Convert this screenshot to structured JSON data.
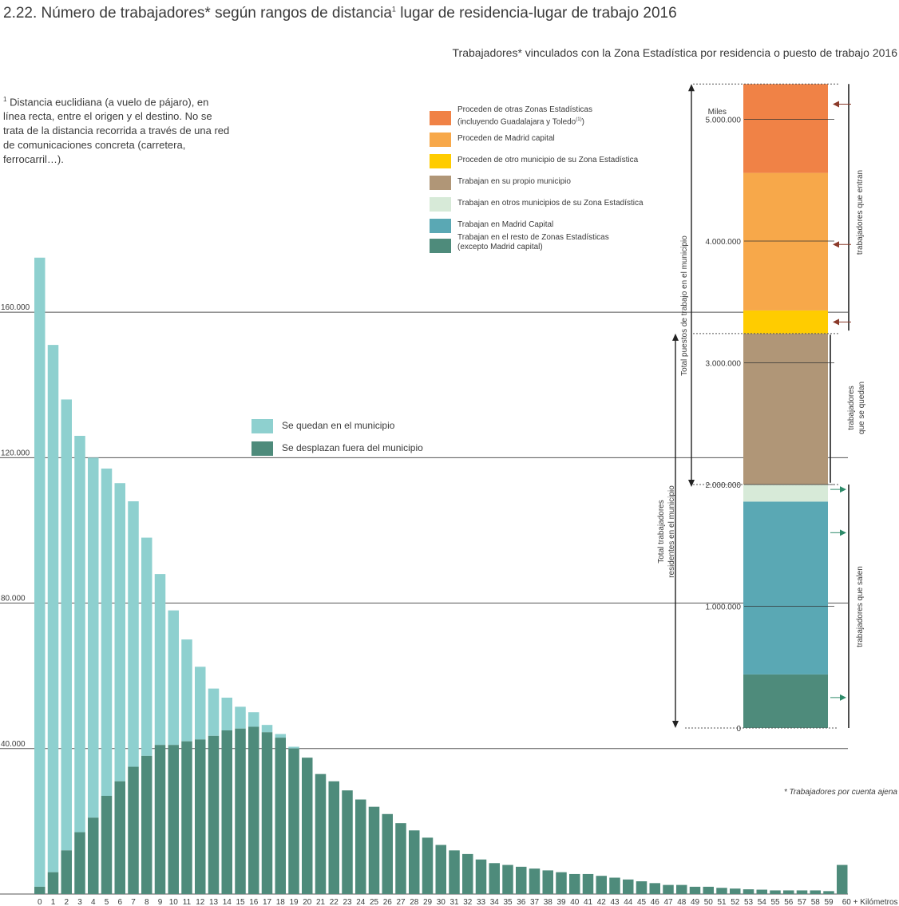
{
  "title": {
    "text": "2.22. Número de trabajadores* según rangos de distancia",
    "sup": "1",
    "text_end": " lugar de residencia-lugar de trabajo 2016"
  },
  "subtitle": "Trabajadores* vinculados con la Zona Estadística por residencia o puesto de trabajo 2016",
  "footnote": {
    "sup": "1",
    "text": "Distancia euclidiana (a vuelo de pájaro), en línea recta, entre el origen y el destino. No se trata de la distancia recorrida a través de una red de comunicaciones concreta (carretera, ferrocarril…)."
  },
  "note": "* Trabajadores por cuenta ajena",
  "colors": {
    "stay": "#8ed0cf",
    "leave": "#4e8b7b",
    "grid": "#555555",
    "arrow_in": "#8b3a2a",
    "arrow_out": "#2e8b6a"
  },
  "chart_data": [
    {
      "type": "bar",
      "stacked": true,
      "xlabel": "Kilómetros",
      "ylim": [
        0,
        180000
      ],
      "y_ticks": [
        "40.000",
        "80.000",
        "120.000",
        "160.000"
      ],
      "y_tick_values": [
        40000,
        80000,
        120000,
        160000
      ],
      "categories": [
        "0",
        "1",
        "2",
        "3",
        "4",
        "5",
        "6",
        "7",
        "8",
        "9",
        "10",
        "11",
        "12",
        "13",
        "14",
        "15",
        "16",
        "17",
        "18",
        "19",
        "20",
        "21",
        "22",
        "23",
        "24",
        "25",
        "26",
        "27",
        "28",
        "29",
        "30",
        "31",
        "32",
        "33",
        "34",
        "35",
        "36",
        "37",
        "38",
        "39",
        "40",
        "41",
        "42",
        "43",
        "44",
        "45",
        "46",
        "47",
        "48",
        "49",
        "50",
        "51",
        "52",
        "53",
        "54",
        "55",
        "56",
        "57",
        "58",
        "59",
        "60 + Kilómetros"
      ],
      "series": [
        {
          "name": "Se quedan en el municipio",
          "values": [
            173000,
            145000,
            124000,
            109000,
            99000,
            90000,
            82000,
            73000,
            60000,
            47000,
            37000,
            28000,
            20000,
            13000,
            9000,
            6000,
            4000,
            2000,
            1000,
            500,
            0,
            0,
            0,
            0,
            0,
            0,
            0,
            0,
            0,
            0,
            0,
            0,
            0,
            0,
            0,
            0,
            0,
            0,
            0,
            0,
            0,
            0,
            0,
            0,
            0,
            0,
            0,
            0,
            0,
            0,
            0,
            0,
            0,
            0,
            0,
            0,
            0,
            0,
            0,
            0,
            0
          ]
        },
        {
          "name": "Se desplazan fuera del municipio",
          "values": [
            2000,
            6000,
            12000,
            17000,
            21000,
            27000,
            31000,
            35000,
            38000,
            41000,
            41000,
            42000,
            42500,
            43500,
            45000,
            45500,
            46000,
            44500,
            43000,
            40000,
            37500,
            33000,
            31000,
            28500,
            26000,
            24000,
            22000,
            19500,
            17500,
            15500,
            13500,
            12000,
            11000,
            9500,
            8500,
            8000,
            7500,
            7000,
            6500,
            6000,
            5500,
            5500,
            5000,
            4500,
            4000,
            3500,
            3000,
            2500,
            2500,
            2000,
            2000,
            1700,
            1500,
            1300,
            1200,
            1000,
            1000,
            1000,
            1000,
            800,
            8000
          ]
        }
      ],
      "legend": [
        {
          "label": "Se quedan en el municipio",
          "color": "#8ed0cf"
        },
        {
          "label": "Se desplazan fuera del municipio",
          "color": "#4e8b7b"
        }
      ]
    },
    {
      "type": "bar",
      "stacked": true,
      "unit_label": "Miles",
      "ylim": [
        0,
        5300000
      ],
      "y_ticks": [
        "0",
        "1.000.000",
        "2.000.000",
        "3.000.000",
        "4.000.000",
        "5.000.000"
      ],
      "y_tick_values": [
        0,
        1000000,
        2000000,
        3000000,
        4000000,
        5000000
      ],
      "segments": [
        {
          "label": "Trabajan en el resto de Zonas Estadísticas (excepto Madrid capital)",
          "color": "#4e8b7b",
          "value": 440000
        },
        {
          "label": "Trabajan en Madrid Capital",
          "color": "#5aa8b4",
          "value": 1420000
        },
        {
          "label": "Trabajan en otros municipios de su Zona Estadística",
          "color": "#d7ead8",
          "value": 140000
        },
        {
          "label": "Trabajan en su propio municipio",
          "color": "#b09677",
          "value": 1240000
        },
        {
          "label": "Proceden de otro municipio de su Zona Estadística",
          "color": "#ffcc00",
          "value": 190000
        },
        {
          "label": "Proceden de Madrid capital",
          "color": "#f7a84a",
          "value": 1130000
        },
        {
          "label": "Proceden de otras Zonas Estadísticas (incluyendo Guadalajara y Toledo)",
          "color": "#f08246",
          "value": 730000
        }
      ],
      "brackets": {
        "total_puestos": "Total puestos de trabajo en el municipio",
        "total_residentes_1": "Total trabajadores",
        "total_residentes_2": "residentes en el municipio",
        "entran": "trabajadores que entran",
        "quedan_1": "trabajadores",
        "quedan_2": "que se quedan",
        "salen": "trabajadores que salen"
      }
    }
  ],
  "legend2": [
    {
      "line1": "Proceden de otras Zonas Estadísticas",
      "line2": "(incluyendo Guadalajara y Toledo",
      "sup": "(1)",
      "line2_end": ")",
      "color": "#f08246"
    },
    {
      "line1": "Proceden de Madrid capital",
      "line2": "",
      "sup": "",
      "line2_end": "",
      "color": "#f7a84a"
    },
    {
      "line1": "Proceden de otro municipio de su Zona Estadística",
      "line2": "",
      "sup": "",
      "line2_end": "",
      "color": "#ffcc00"
    },
    {
      "line1": "Trabajan en su propio municipio",
      "line2": "",
      "sup": "",
      "line2_end": "",
      "color": "#b09677"
    },
    {
      "line1": "Trabajan en otros municipios de su Zona Estadística",
      "line2": "",
      "sup": "",
      "line2_end": "",
      "color": "#d7ead8"
    },
    {
      "line1": "Trabajan en Madrid Capital",
      "line2": "",
      "sup": "",
      "line2_end": "",
      "color": "#5aa8b4"
    },
    {
      "line1": "Trabajan en el resto de Zonas Estadísticas",
      "line2": "(excepto Madrid capital)",
      "sup": "",
      "line2_end": "",
      "color": "#4e8b7b"
    }
  ]
}
